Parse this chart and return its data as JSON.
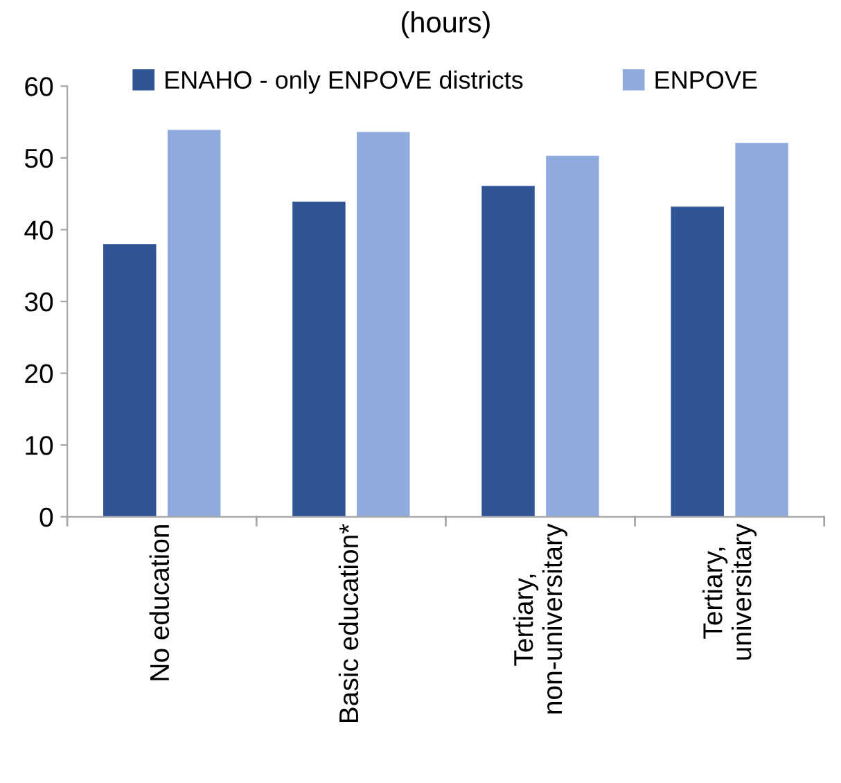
{
  "chart_data": {
    "type": "bar",
    "title": "(hours)",
    "categories": [
      "No education",
      "Basic education*",
      "Tertiary,\nnon-universitary",
      "Tertiary,\nuniversitary"
    ],
    "series": [
      {
        "name": "ENAHO - only ENPOVE districts",
        "color": "#2f5597",
        "values": [
          38.0,
          43.9,
          46.1,
          43.2
        ]
      },
      {
        "name": "ENPOVE",
        "color": "#8faadc",
        "values": [
          53.9,
          53.6,
          50.3,
          52.1
        ]
      }
    ],
    "ylim": [
      0,
      60
    ],
    "yticks": [
      0,
      10,
      20,
      30,
      40,
      50,
      60
    ],
    "grid": false,
    "legend": "top"
  }
}
